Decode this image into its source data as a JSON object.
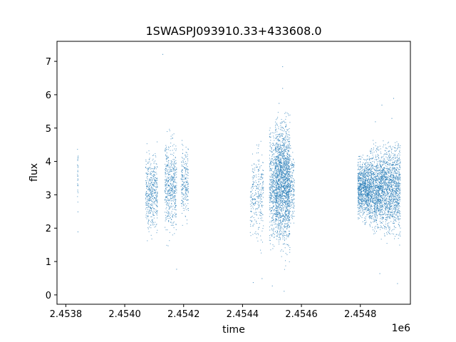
{
  "chart_data": {
    "type": "scatter",
    "title": "1SWASPJ093910.33+433608.0",
    "xlabel": "time",
    "ylabel": "flux",
    "x_offset_label": "1e6",
    "xlim": [
      2.45377,
      2.45497
    ],
    "ylim": [
      -0.28,
      7.6
    ],
    "x_ticks": [
      2.4538,
      2.454,
      2.4542,
      2.4544,
      2.4546,
      2.4548
    ],
    "x_tick_labels": [
      "2.4538",
      "2.4540",
      "2.4542",
      "2.4544",
      "2.4546",
      "2.4548"
    ],
    "y_ticks": [
      0,
      1,
      2,
      3,
      4,
      5,
      6,
      7
    ],
    "y_tick_labels": [
      "0",
      "1",
      "2",
      "3",
      "4",
      "5",
      "6",
      "7"
    ],
    "grid": false,
    "point_color": "#1f77b4",
    "segments": [
      {
        "x_start": 2.453838,
        "x_end": 2.453841,
        "y_low": 1.6,
        "y_high": 4.4,
        "y_center": 3.6,
        "count": 30
      },
      {
        "x_start": 2.45407,
        "x_end": 2.45411,
        "y_low": 1.3,
        "y_high": 4.8,
        "y_center": 3.1,
        "count": 450
      },
      {
        "x_start": 2.454135,
        "x_end": 2.454175,
        "y_low": 1.0,
        "y_high": 5.0,
        "y_center": 3.3,
        "count": 500
      },
      {
        "x_start": 2.45419,
        "x_end": 2.454215,
        "y_low": 1.6,
        "y_high": 4.8,
        "y_center": 3.4,
        "count": 220
      },
      {
        "x_start": 2.454425,
        "x_end": 2.45443,
        "y_low": 1.6,
        "y_high": 3.6,
        "y_center": 2.6,
        "count": 30
      },
      {
        "x_start": 2.45443,
        "x_end": 2.45447,
        "y_low": 0.9,
        "y_high": 5.0,
        "y_center": 3.0,
        "count": 260
      },
      {
        "x_start": 2.45449,
        "x_end": 2.45451,
        "y_low": 0.4,
        "y_high": 5.4,
        "y_center": 3.2,
        "count": 350
      },
      {
        "x_start": 2.45451,
        "x_end": 2.45456,
        "y_low": 0.2,
        "y_high": 5.5,
        "y_center": 3.4,
        "count": 1800
      },
      {
        "x_start": 2.45456,
        "x_end": 2.454575,
        "y_low": 1.5,
        "y_high": 4.5,
        "y_center": 3.3,
        "count": 150
      },
      {
        "x_start": 2.45479,
        "x_end": 2.45483,
        "y_low": 1.6,
        "y_high": 4.2,
        "y_center": 3.2,
        "count": 900
      },
      {
        "x_start": 2.45483,
        "x_end": 2.45488,
        "y_low": 1.3,
        "y_high": 4.7,
        "y_center": 3.2,
        "count": 1100
      },
      {
        "x_start": 2.45488,
        "x_end": 2.454935,
        "y_low": 0.9,
        "y_high": 4.6,
        "y_center": 3.2,
        "count": 1100
      }
    ],
    "outliers": [
      {
        "x": 2.454128,
        "y": 7.22
      },
      {
        "x": 2.454535,
        "y": 6.85
      },
      {
        "x": 2.454535,
        "y": 6.2
      },
      {
        "x": 2.454523,
        "y": 5.75
      },
      {
        "x": 2.454513,
        "y": 4.45
      },
      {
        "x": 2.454872,
        "y": 5.7
      },
      {
        "x": 2.45485,
        "y": 5.2
      },
      {
        "x": 2.454912,
        "y": 5.9
      },
      {
        "x": 2.454906,
        "y": 5.3
      },
      {
        "x": 2.454465,
        "y": 0.5
      },
      {
        "x": 2.4545,
        "y": 0.28
      },
      {
        "x": 2.45454,
        "y": 0.12
      },
      {
        "x": 2.454865,
        "y": 0.65
      },
      {
        "x": 2.454925,
        "y": 0.35
      },
      {
        "x": 2.454175,
        "y": 0.78
      },
      {
        "x": 2.45384,
        "y": 2.5
      },
      {
        "x": 2.45384,
        "y": 1.9
      },
      {
        "x": 2.454435,
        "y": 0.38
      }
    ]
  }
}
